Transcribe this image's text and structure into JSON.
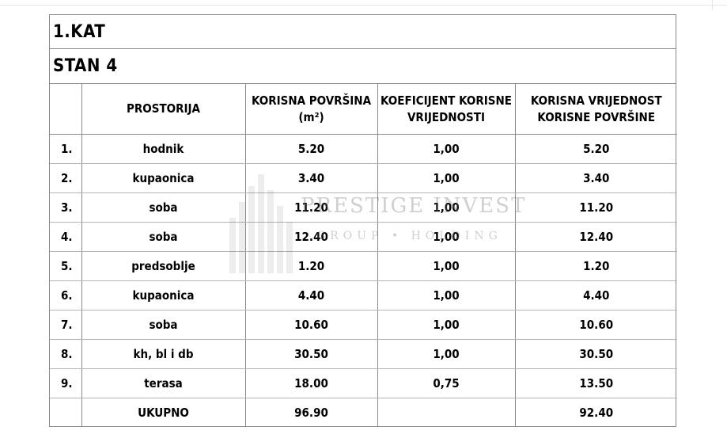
{
  "header": {
    "floor": "1.KAT",
    "unit": "STAN 4"
  },
  "table": {
    "columns": [
      "",
      "PROSTORIJA",
      "KORISNA POVRŠINA (m²)",
      "KOEFICIJENT KORISNE VRIJEDNOSTI",
      "KORISNA VRIJEDNOST KORISNE POVRŠINE"
    ],
    "col_area_line1": "KORISNA POVRŠINA",
    "col_area_line2": "(m²)",
    "col_coef_line1": "KOEFICIJENT KORISNE",
    "col_coef_line2": "VRIJEDNOSTI",
    "col_val_line1": "KORISNA VRIJEDNOST",
    "col_val_line2": "KORISNE POVRŠINE",
    "rows": [
      {
        "no": "1.",
        "room": "hodnik",
        "area": "5.20",
        "coef": "1,00",
        "value": "5.20"
      },
      {
        "no": "2.",
        "room": "kupaonica",
        "area": "3.40",
        "coef": "1,00",
        "value": "3.40"
      },
      {
        "no": "3.",
        "room": "soba",
        "area": "11.20",
        "coef": "1,00",
        "value": "11.20"
      },
      {
        "no": "4.",
        "room": "soba",
        "area": "12.40",
        "coef": "1,00",
        "value": "12.40"
      },
      {
        "no": "5.",
        "room": "predsoblje",
        "area": "1.20",
        "coef": "1,00",
        "value": "1.20"
      },
      {
        "no": "6.",
        "room": "kupaonica",
        "area": "4.40",
        "coef": "1,00",
        "value": "4.40"
      },
      {
        "no": "7.",
        "room": "soba",
        "area": "10.60",
        "coef": "1,00",
        "value": "10.60"
      },
      {
        "no": "8.",
        "room": "kh, bl i db",
        "area": "30.50",
        "coef": "1,00",
        "value": "30.50"
      },
      {
        "no": "9.",
        "room": "terasa",
        "area": "18.00",
        "coef": "0,75",
        "value": "13.50"
      }
    ],
    "total": {
      "label": "UKUPNO",
      "area": "96.90",
      "coef": "",
      "value": "92.40"
    }
  },
  "watermark": {
    "title": "PRESTIGE INVEST",
    "subtitle": "GROUP • HOLDING"
  }
}
